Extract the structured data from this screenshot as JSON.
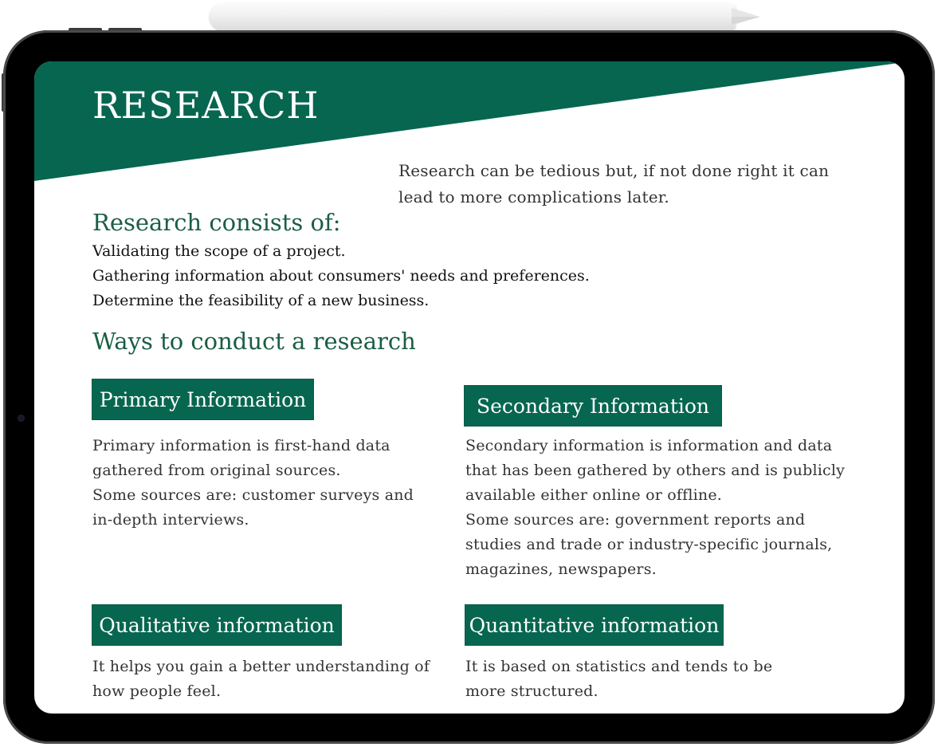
{
  "page": {
    "title": "RESEARCH",
    "intro": "Research can be tedious but, if not done right it can lead to more complications later.",
    "consists_heading": "Research consists of:",
    "consists_items": [
      "Validating the scope of a project.",
      "Gathering information about consumers' needs and preferences.",
      "Determine the feasibility of a new business."
    ],
    "ways_heading": "Ways to conduct a research",
    "primary": {
      "label": "Primary Information",
      "lines": [
        "Primary information is first-hand data",
        "gathered from original sources.",
        "Some sources are: customer surveys and",
        "in-depth interviews."
      ]
    },
    "secondary": {
      "label": "Secondary Information",
      "lines": [
        "Secondary information is information and data",
        "that has been gathered by others and is publicly",
        "available either online or offline.",
        "Some sources are: government reports and",
        "studies and trade or industry-specific journals,",
        "magazines, newspapers."
      ]
    },
    "qualitative": {
      "label": "Qualitative information",
      "lines": [
        "It helps you gain a better understanding of",
        "how people feel."
      ]
    },
    "quantitative": {
      "label": "Quantitative information",
      "lines": [
        "It is based on statistics and tends to be",
        "more structured."
      ]
    }
  },
  "colors": {
    "accent_green": "#076650",
    "heading_green": "#1a5e44",
    "device_bezel": "#000000"
  },
  "icons": {
    "stylus": "apple-pencil-icon",
    "camera": "front-camera-icon"
  }
}
